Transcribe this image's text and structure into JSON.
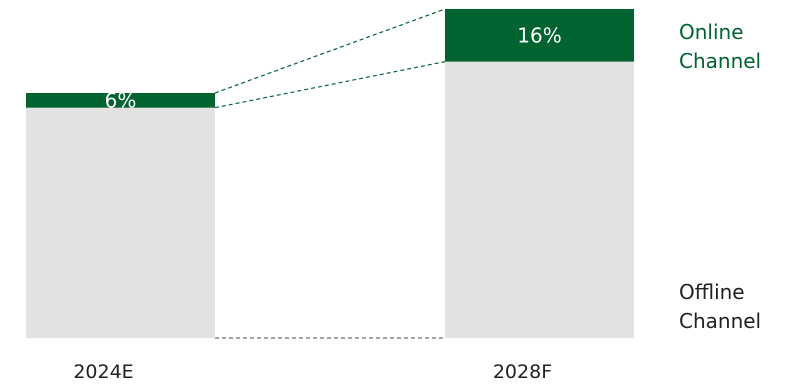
{
  "chart_data": {
    "type": "bar",
    "stacked": true,
    "normalized": true,
    "categories": [
      "2024E",
      "2028F"
    ],
    "series": [
      {
        "name": "Offline Channel",
        "values": [
          94,
          84
        ],
        "color": "#e3e2e3"
      },
      {
        "name": "Online Channel",
        "values": [
          6,
          16
        ],
        "color": "#006330"
      }
    ],
    "data_labels": [
      "6%",
      "16%"
    ],
    "unit": "%",
    "ylim": [
      0,
      100
    ],
    "grid": false,
    "legend_position": "right",
    "legend": {
      "online": {
        "line1": "Online",
        "line2": "Channel",
        "color": "#006330"
      },
      "offline": {
        "line1": "Offline",
        "line2": "Channel",
        "color": "#222222"
      }
    }
  }
}
